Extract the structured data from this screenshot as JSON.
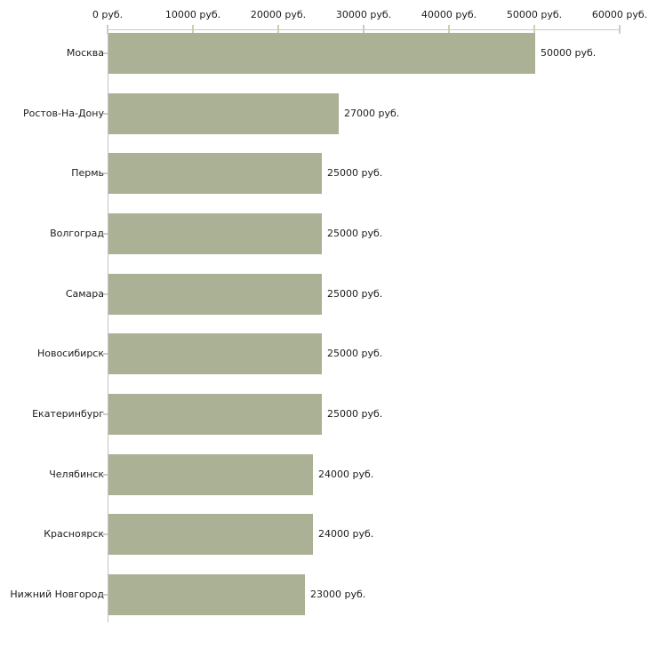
{
  "chart_data": {
    "type": "bar",
    "orientation": "horizontal",
    "title": "",
    "xlabel": "",
    "ylabel": "",
    "unit": "руб.",
    "categories": [
      "Москва",
      "Ростов-На-Дону",
      "Пермь",
      "Волгоград",
      "Самара",
      "Новосибирск",
      "Екатеринбург",
      "Челябинск",
      "Красноярск",
      "Нижний Новгород"
    ],
    "values": [
      50000,
      27000,
      25000,
      25000,
      25000,
      25000,
      25000,
      24000,
      24000,
      23000
    ],
    "value_labels": [
      "50000 руб.",
      "27000 руб.",
      "25000 руб.",
      "25000 руб.",
      "25000 руб.",
      "25000 руб.",
      "25000 руб.",
      "24000 руб.",
      "24000 руб.",
      "23000 руб."
    ],
    "xlim": [
      0,
      60000
    ],
    "x_tick_values": [
      0,
      10000,
      20000,
      30000,
      40000,
      50000,
      60000
    ],
    "x_tick_labels": [
      "0 руб.",
      "10000 руб.",
      "20000 руб.",
      "30000 руб.",
      "40000 руб.",
      "50000 руб.",
      "60000 руб."
    ],
    "grid": "off",
    "legend": "none",
    "colors": {
      "bar": "#abb194",
      "axis": "#c6c6c6",
      "tick": "#cdceb7",
      "text": "#1c1c1c",
      "background": "#ffffff"
    }
  }
}
